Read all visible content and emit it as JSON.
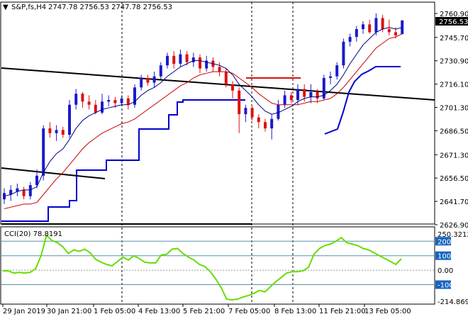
{
  "header": {
    "symbol": "S&P,fs,H4",
    "ohlc": "2747.78 2756.53 2747.78 2756.53"
  },
  "indicator_header": "CCI(20) 78.8191",
  "current_price_label": "2756.53",
  "colors": {
    "bull_candle": "#1a1acc",
    "bear_candle": "#dd1111",
    "fast_ma": "#000080",
    "slow_ma": "#cc0000",
    "stepline": "#0000cc",
    "trendline": "#000000",
    "hline": "#dd1111",
    "cci": "#66dd00",
    "level_label_bg": "#1565c0"
  },
  "chart_data": [
    {
      "type": "candlestick",
      "title": "",
      "price_ticks": [
        "2760.90",
        "2745.70",
        "2730.90",
        "2716.10",
        "2701.30",
        "2686.50",
        "2671.30",
        "2656.50",
        "2641.70",
        "2626.90"
      ],
      "date_ticks": [
        "29 Jan 2019",
        "30 Jan 21:00",
        "1 Feb 05:00",
        "4 Feb 13:00",
        "5 Feb 21:00",
        "7 Feb 05:00",
        "8 Feb 13:00",
        "11 Feb 21:00",
        "13 Feb 05:00"
      ],
      "ylim": [
        2626.9,
        2760.9
      ],
      "candles": [
        {
          "o": 2643,
          "h": 2650,
          "l": 2640,
          "c": 2647
        },
        {
          "o": 2646,
          "h": 2652,
          "l": 2642,
          "c": 2649
        },
        {
          "o": 2648,
          "h": 2653,
          "l": 2645,
          "c": 2650
        },
        {
          "o": 2649,
          "h": 2651,
          "l": 2643,
          "c": 2645
        },
        {
          "o": 2645,
          "h": 2654,
          "l": 2643,
          "c": 2652
        },
        {
          "o": 2652,
          "h": 2662,
          "l": 2650,
          "c": 2658
        },
        {
          "o": 2658,
          "h": 2690,
          "l": 2655,
          "c": 2688
        },
        {
          "o": 2688,
          "h": 2692,
          "l": 2682,
          "c": 2685
        },
        {
          "o": 2685,
          "h": 2690,
          "l": 2680,
          "c": 2687
        },
        {
          "o": 2687,
          "h": 2689,
          "l": 2682,
          "c": 2684
        },
        {
          "o": 2684,
          "h": 2706,
          "l": 2682,
          "c": 2703
        },
        {
          "o": 2703,
          "h": 2713,
          "l": 2700,
          "c": 2710
        },
        {
          "o": 2710,
          "h": 2711,
          "l": 2701,
          "c": 2705
        },
        {
          "o": 2705,
          "h": 2709,
          "l": 2700,
          "c": 2703
        },
        {
          "o": 2703,
          "h": 2706,
          "l": 2697,
          "c": 2698
        },
        {
          "o": 2698,
          "h": 2710,
          "l": 2697,
          "c": 2705
        },
        {
          "o": 2705,
          "h": 2709,
          "l": 2702,
          "c": 2706
        },
        {
          "o": 2706,
          "h": 2708,
          "l": 2701,
          "c": 2704
        },
        {
          "o": 2704,
          "h": 2709,
          "l": 2702,
          "c": 2707
        },
        {
          "o": 2707,
          "h": 2709,
          "l": 2700,
          "c": 2703
        },
        {
          "o": 2703,
          "h": 2716,
          "l": 2701,
          "c": 2714
        },
        {
          "o": 2714,
          "h": 2722,
          "l": 2712,
          "c": 2720
        },
        {
          "o": 2720,
          "h": 2722,
          "l": 2715,
          "c": 2717
        },
        {
          "o": 2717,
          "h": 2724,
          "l": 2714,
          "c": 2721
        },
        {
          "o": 2721,
          "h": 2730,
          "l": 2719,
          "c": 2728
        },
        {
          "o": 2728,
          "h": 2736,
          "l": 2726,
          "c": 2734
        },
        {
          "o": 2734,
          "h": 2737,
          "l": 2726,
          "c": 2729
        },
        {
          "o": 2729,
          "h": 2738,
          "l": 2727,
          "c": 2735
        },
        {
          "o": 2735,
          "h": 2737,
          "l": 2728,
          "c": 2730
        },
        {
          "o": 2730,
          "h": 2736,
          "l": 2727,
          "c": 2733
        },
        {
          "o": 2733,
          "h": 2735,
          "l": 2723,
          "c": 2726
        },
        {
          "o": 2726,
          "h": 2734,
          "l": 2724,
          "c": 2731
        },
        {
          "o": 2731,
          "h": 2733,
          "l": 2724,
          "c": 2727
        },
        {
          "o": 2727,
          "h": 2730,
          "l": 2721,
          "c": 2724
        },
        {
          "o": 2724,
          "h": 2726,
          "l": 2714,
          "c": 2716
        },
        {
          "o": 2716,
          "h": 2718,
          "l": 2707,
          "c": 2712
        },
        {
          "o": 2712,
          "h": 2714,
          "l": 2685,
          "c": 2697
        },
        {
          "o": 2697,
          "h": 2703,
          "l": 2692,
          "c": 2701
        },
        {
          "o": 2701,
          "h": 2702,
          "l": 2693,
          "c": 2695
        },
        {
          "o": 2695,
          "h": 2697,
          "l": 2688,
          "c": 2692
        },
        {
          "o": 2692,
          "h": 2694,
          "l": 2686,
          "c": 2688
        },
        {
          "o": 2688,
          "h": 2697,
          "l": 2681,
          "c": 2694
        },
        {
          "o": 2694,
          "h": 2706,
          "l": 2693,
          "c": 2703
        },
        {
          "o": 2703,
          "h": 2712,
          "l": 2701,
          "c": 2709
        },
        {
          "o": 2709,
          "h": 2711,
          "l": 2704,
          "c": 2706
        },
        {
          "o": 2706,
          "h": 2716,
          "l": 2703,
          "c": 2713
        },
        {
          "o": 2713,
          "h": 2716,
          "l": 2705,
          "c": 2708
        },
        {
          "o": 2708,
          "h": 2716,
          "l": 2704,
          "c": 2711
        },
        {
          "o": 2711,
          "h": 2713,
          "l": 2704,
          "c": 2707
        },
        {
          "o": 2707,
          "h": 2722,
          "l": 2706,
          "c": 2720
        },
        {
          "o": 2720,
          "h": 2724,
          "l": 2716,
          "c": 2721
        },
        {
          "o": 2721,
          "h": 2730,
          "l": 2719,
          "c": 2728
        },
        {
          "o": 2728,
          "h": 2745,
          "l": 2726,
          "c": 2743
        },
        {
          "o": 2743,
          "h": 2748,
          "l": 2740,
          "c": 2746
        },
        {
          "o": 2746,
          "h": 2753,
          "l": 2743,
          "c": 2751
        },
        {
          "o": 2751,
          "h": 2756,
          "l": 2748,
          "c": 2754
        },
        {
          "o": 2754,
          "h": 2757,
          "l": 2748,
          "c": 2749
        },
        {
          "o": 2749,
          "h": 2761,
          "l": 2747,
          "c": 2758
        },
        {
          "o": 2758,
          "h": 2760,
          "l": 2749,
          "c": 2751
        },
        {
          "o": 2751,
          "h": 2757,
          "l": 2747,
          "c": 2749
        },
        {
          "o": 2749,
          "h": 2752,
          "l": 2745,
          "c": 2747
        },
        {
          "o": 2747.78,
          "h": 2756.53,
          "l": 2747.78,
          "c": 2756.53
        }
      ],
      "fast_ma": [
        2645,
        2646,
        2648,
        2649,
        2649,
        2651,
        2660,
        2667,
        2672,
        2675,
        2681,
        2688,
        2693,
        2696,
        2698,
        2700,
        2701,
        2702,
        2703,
        2703,
        2705,
        2709,
        2712,
        2714,
        2717,
        2721,
        2724,
        2727,
        2729,
        2731,
        2731,
        2730,
        2729,
        2728,
        2726,
        2722,
        2716,
        2712,
        2708,
        2703,
        2699,
        2697,
        2698,
        2700,
        2702,
        2705,
        2707,
        2708,
        2708,
        2709,
        2712,
        2716,
        2722,
        2729,
        2735,
        2741,
        2745,
        2749,
        2751,
        2752,
        2751,
        2752
      ],
      "slow_ma": [
        2637,
        2638,
        2639,
        2640,
        2640,
        2641,
        2646,
        2651,
        2656,
        2660,
        2665,
        2670,
        2675,
        2679,
        2682,
        2685,
        2687,
        2689,
        2691,
        2692,
        2694,
        2697,
        2700,
        2703,
        2706,
        2709,
        2712,
        2715,
        2717,
        2720,
        2722,
        2723,
        2724,
        2724,
        2724,
        2723,
        2720,
        2717,
        2714,
        2710,
        2707,
        2704,
        2703,
        2703,
        2703,
        2703,
        2704,
        2705,
        2705,
        2706,
        2707,
        2710,
        2714,
        2719,
        2724,
        2729,
        2734,
        2739,
        2742,
        2745,
        2746,
        2748
      ]
    },
    {
      "type": "line",
      "title": "",
      "y_ticks": [
        "250.3212",
        "200",
        "100",
        "0.00",
        "-100",
        "-214.8692"
      ],
      "ylim": [
        -214.8692,
        250.3212
      ],
      "series": [
        {
          "values": [
            -5,
            -5,
            -20,
            -15,
            -20,
            -15,
            10,
            100,
            240,
            205,
            190,
            160,
            115,
            140,
            130,
            145,
            120,
            75,
            55,
            40,
            30,
            60,
            90,
            70,
            100,
            80,
            55,
            50,
            50,
            105,
            110,
            145,
            150,
            115,
            90,
            70,
            40,
            25,
            -10,
            -60,
            -120,
            -200,
            -205,
            -200,
            -185,
            -175,
            -160,
            -140,
            -150,
            -115,
            -80,
            -50,
            -20,
            -10,
            -10,
            -5,
            20,
            110,
            150,
            170,
            180,
            200,
            225,
            190,
            180,
            170,
            150,
            140,
            120,
            100,
            80,
            60,
            40,
            78.8191
          ]
        }
      ]
    }
  ]
}
